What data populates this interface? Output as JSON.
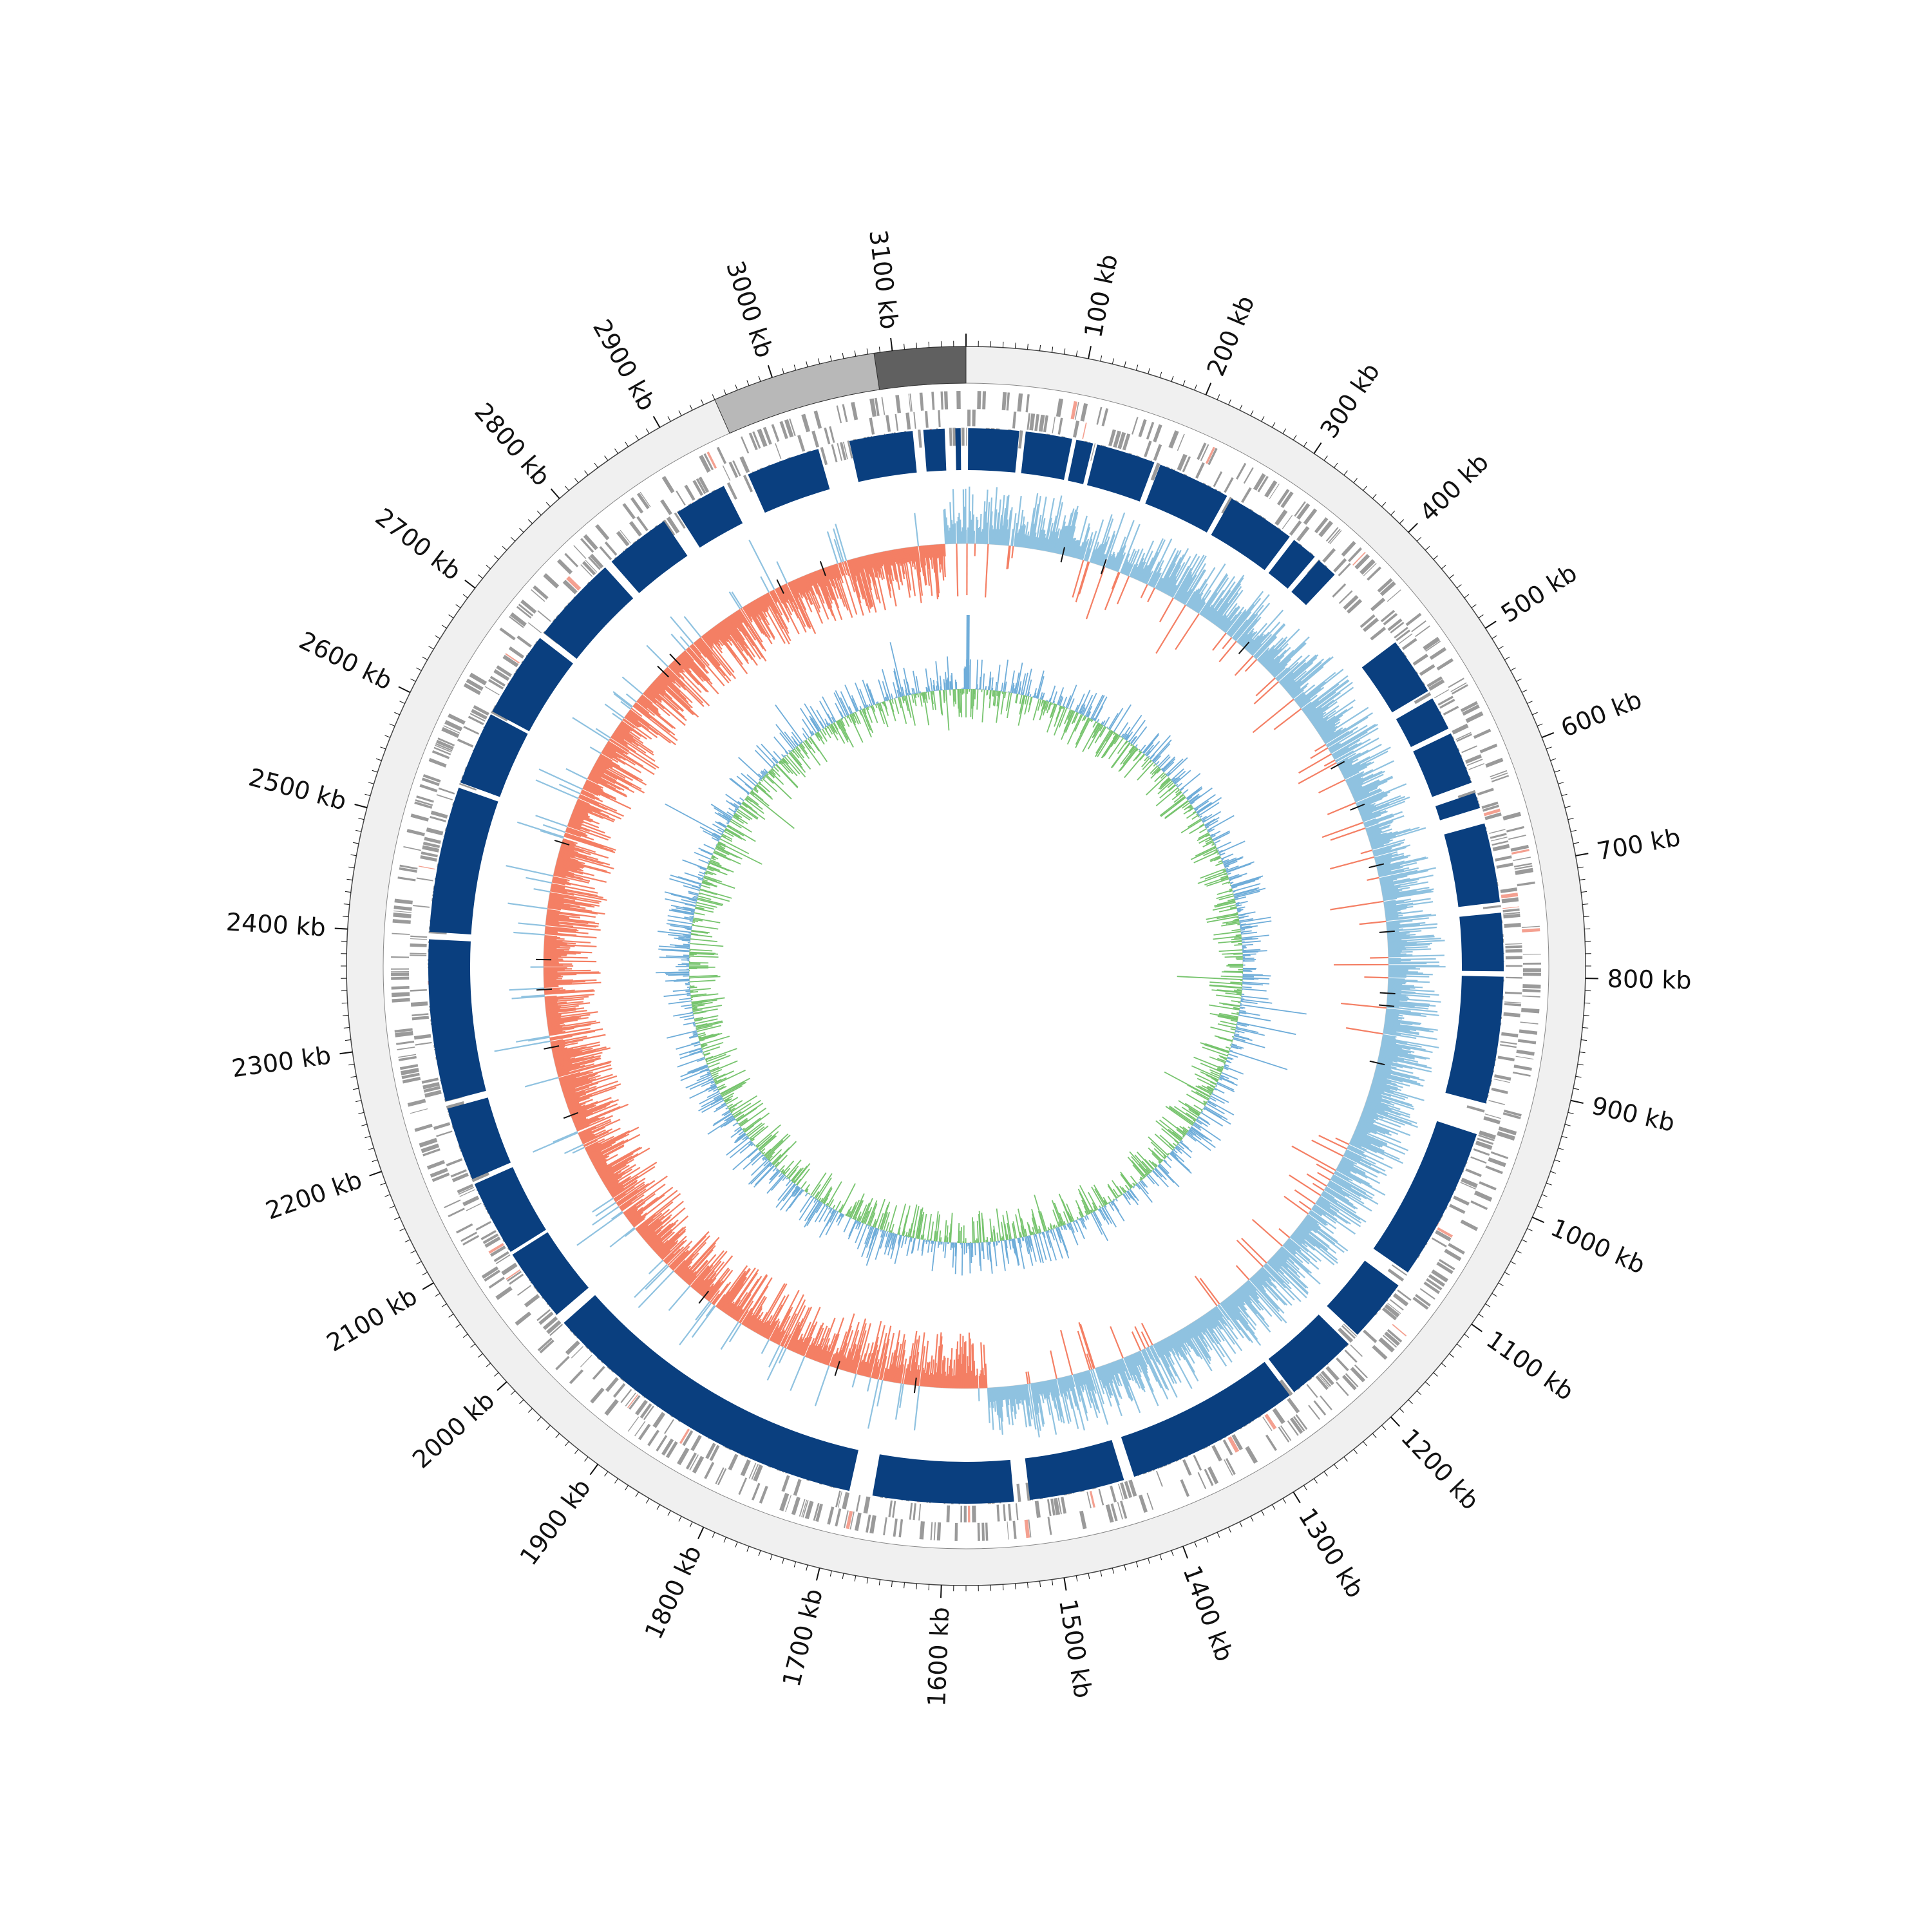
{
  "genome": {
    "length_kb": 3160,
    "label_interval_kb": 100,
    "minor_tick_interval_kb": 10,
    "unit": "kb"
  },
  "colors": {
    "background": "#ffffff",
    "outer_ring": "#f0f0f0",
    "outer_ring_stroke": "#444444",
    "contig_light": "#b8b8b8",
    "contig_dark": "#606060",
    "cds": "#9a9a9a",
    "cds_highlight": "#f4a090",
    "block": "#0a3f7f",
    "track_positive": "#8fc2e0",
    "track_negative": "#f47f64",
    "track_mark": "#111111",
    "inner_positive": "#6fadd9",
    "inner_negative": "#77c46e"
  },
  "tracks": [
    {
      "name": "contigs",
      "segments_kb": [
        [
          3085,
          3160,
          "contig_dark"
        ],
        [
          2950,
          3085,
          "contig_light"
        ]
      ]
    },
    {
      "name": "cds",
      "style": "gene-ticks"
    },
    {
      "name": "blocks",
      "segments_kb": [
        [
          2,
          50
        ],
        [
          56,
          100
        ],
        [
          104,
          120
        ],
        [
          124,
          180
        ],
        [
          186,
          255
        ],
        [
          260,
          325
        ],
        [
          330,
          355
        ],
        [
          360,
          380
        ],
        [
          465,
          520
        ],
        [
          528,
          560
        ],
        [
          565,
          615
        ],
        [
          625,
          640
        ],
        [
          655,
          730
        ],
        [
          740,
          795
        ],
        [
          800,
          920
        ],
        [
          950,
          1095
        ],
        [
          1110,
          1170
        ],
        [
          1182,
          1250
        ],
        [
          1255,
          1420
        ],
        [
          1430,
          1520
        ],
        [
          1535,
          1668
        ],
        [
          1690,
          2005
        ],
        [
          2015,
          2085
        ],
        [
          2088,
          2160
        ],
        [
          2165,
          2235
        ],
        [
          2242,
          2395
        ],
        [
          2402,
          2540
        ],
        [
          2545,
          2615
        ],
        [
          2618,
          2700
        ],
        [
          2706,
          2790
        ],
        [
          2798,
          2860
        ],
        [
          2875,
          2925
        ],
        [
          2950,
          3020
        ],
        [
          3050,
          3110
        ],
        [
          3120,
          3140
        ],
        [
          3150,
          3155
        ]
      ]
    },
    {
      "name": "skew",
      "style": "bipolar-bars"
    },
    {
      "name": "content",
      "style": "bipolar-bars"
    }
  ]
}
